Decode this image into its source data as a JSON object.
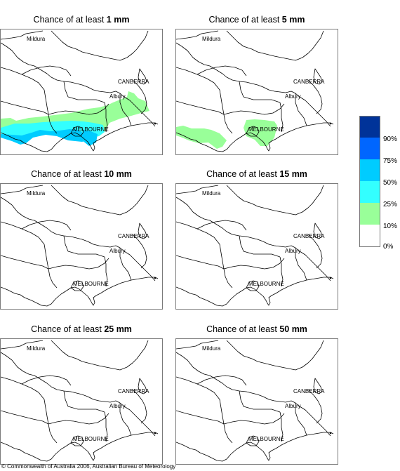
{
  "panels": [
    {
      "prefix": "Chance of at least ",
      "amount": "1 mm"
    },
    {
      "prefix": "Chance of at least ",
      "amount": "5 mm"
    },
    {
      "prefix": "Chance of at least ",
      "amount": "10 mm"
    },
    {
      "prefix": "Chance of at least ",
      "amount": "15 mm"
    },
    {
      "prefix": "Chance of at least ",
      "amount": "25 mm"
    },
    {
      "prefix": "Chance of at least ",
      "amount": "50 mm"
    }
  ],
  "places": {
    "mildura": "Mildura",
    "canberra": "CANBERRA",
    "albury": "Albury",
    "melbourne": "MELBOURNE"
  },
  "legend": {
    "colors": [
      "#003399",
      "#0066ff",
      "#00ccff",
      "#33ffff",
      "#99ff99",
      "#ffffff"
    ],
    "labels": [
      "90%",
      "75%",
      "50%",
      "25%",
      "10%",
      "0%"
    ]
  },
  "footer": "© Commonwealth of Australia 2006, Australian Bureau of Meteorology"
}
